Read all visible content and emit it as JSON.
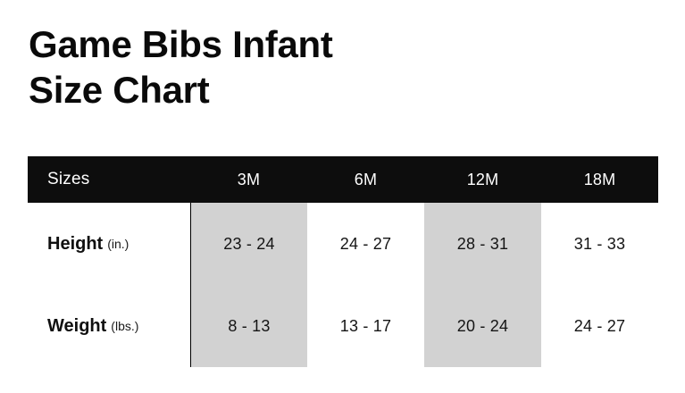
{
  "title": {
    "line1": "Game Bibs Infant",
    "line2": "Size Chart"
  },
  "table": {
    "header": {
      "label": "Sizes",
      "columns": [
        "3M",
        "6M",
        "12M",
        "18M"
      ]
    },
    "rows": [
      {
        "label": "Height",
        "unit": "(in.)",
        "values": [
          "23 - 24",
          "24 - 27",
          "28 - 31",
          "31 - 33"
        ]
      },
      {
        "label": "Weight",
        "unit": "(lbs.)",
        "values": [
          "8 - 13",
          "13 - 17",
          "20 - 24",
          "24 - 27"
        ]
      }
    ],
    "highlighted_columns": [
      "3M",
      "12M"
    ]
  },
  "colors": {
    "header_bg": "#0d0d0d",
    "header_text": "#ffffff",
    "highlight": "#d2d2d2",
    "text": "#101010",
    "separator_line": "#000000"
  },
  "chart_data": {
    "type": "table",
    "title": "Game Bibs Infant Size Chart",
    "columns": [
      "Sizes",
      "3M",
      "6M",
      "12M",
      "18M"
    ],
    "rows": [
      {
        "label": "Height (in.)",
        "values": [
          "23 - 24",
          "24 - 27",
          "28 - 31",
          "31 - 33"
        ]
      },
      {
        "label": "Weight (lbs.)",
        "values": [
          "8 - 13",
          "13 - 17",
          "20 - 24",
          "24 - 27"
        ]
      }
    ],
    "highlighted_columns": [
      "3M",
      "12M"
    ],
    "legend_position": "none",
    "grid": false
  }
}
